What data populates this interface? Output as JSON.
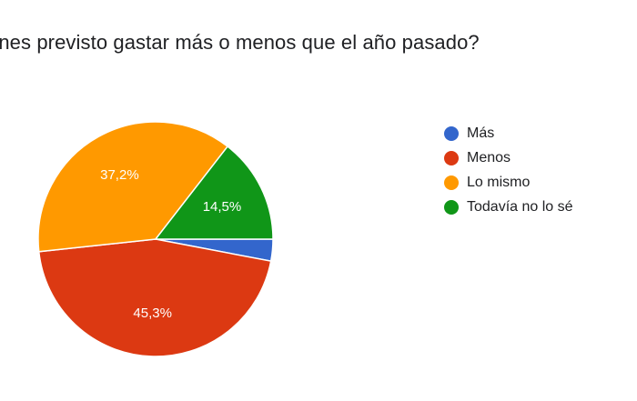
{
  "question": "enes previsto gastar más o menos que el año pasado?",
  "chart_data": {
    "type": "pie",
    "title": "enes previsto gastar más o menos que el año pasado?",
    "categories": [
      "Más",
      "Menos",
      "Lo mismo",
      "Todavía no lo sé"
    ],
    "values": [
      3.0,
      45.3,
      37.2,
      14.5
    ],
    "value_labels": [
      "",
      "45,3%",
      "37,2%",
      "14,5%"
    ],
    "colors": [
      "#3366cc",
      "#dc3912",
      "#ff9900",
      "#109618"
    ],
    "legend_position": "right"
  }
}
